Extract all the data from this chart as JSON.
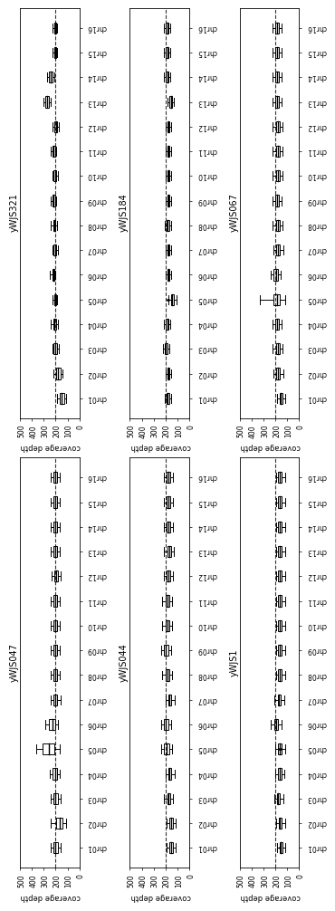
{
  "strain_order": [
    [
      "yWJS047",
      "yWJS321"
    ],
    [
      "yWJS044",
      "yWJS184"
    ],
    [
      "yWJS1",
      "yWJS067"
    ]
  ],
  "chromosomes": [
    "chr01",
    "chr02",
    "chr03",
    "chr04",
    "chr05",
    "chr06",
    "chr07",
    "chr08",
    "chr09",
    "chr10",
    "chr11",
    "chr12",
    "chr13",
    "chr14",
    "chr15",
    "chr16"
  ],
  "xlabel": "coverage depth",
  "dashed_line": 200,
  "xlim": [
    0,
    500
  ],
  "xticks": [
    0,
    100,
    200,
    300,
    400,
    500
  ],
  "strain_data": {
    "yWJS321": {
      "medians": [
        150,
        180,
        200,
        210,
        200,
        220,
        205,
        210,
        215,
        205,
        215,
        195,
        270,
        240,
        200,
        200
      ],
      "q1": [
        130,
        160,
        185,
        195,
        195,
        210,
        195,
        200,
        205,
        195,
        205,
        185,
        255,
        225,
        195,
        195
      ],
      "q3": [
        165,
        195,
        215,
        220,
        210,
        230,
        215,
        220,
        225,
        215,
        225,
        210,
        285,
        255,
        210,
        210
      ],
      "whislo": [
        110,
        140,
        170,
        180,
        185,
        200,
        180,
        190,
        195,
        180,
        195,
        175,
        240,
        210,
        185,
        185
      ],
      "whishi": [
        185,
        215,
        230,
        240,
        225,
        250,
        230,
        240,
        240,
        230,
        240,
        225,
        305,
        270,
        225,
        225
      ],
      "fliers": [
        [],
        [],
        [],
        [],
        [],
        [],
        [],
        [],
        [],
        [],
        [],
        [],
        [],
        [],
        [],
        []
      ]
    },
    "yWJS047": {
      "medians": [
        200,
        165,
        200,
        205,
        260,
        230,
        205,
        200,
        200,
        200,
        200,
        195,
        200,
        200,
        200,
        200
      ],
      "q1": [
        180,
        140,
        180,
        185,
        210,
        205,
        185,
        185,
        185,
        185,
        185,
        180,
        185,
        185,
        185,
        185
      ],
      "q3": [
        220,
        195,
        220,
        225,
        310,
        255,
        220,
        215,
        215,
        215,
        215,
        210,
        215,
        215,
        215,
        215
      ],
      "whislo": [
        155,
        110,
        155,
        165,
        165,
        180,
        160,
        165,
        165,
        165,
        165,
        160,
        165,
        165,
        165,
        165
      ],
      "whishi": [
        245,
        240,
        245,
        250,
        365,
        285,
        245,
        240,
        240,
        240,
        240,
        235,
        240,
        240,
        240,
        240
      ],
      "fliers": [
        [],
        [],
        [],
        [],
        [],
        [],
        [],
        [],
        [],
        [],
        [],
        [],
        [],
        [],
        [],
        []
      ]
    },
    "yWJS184": {
      "medians": [
        180,
        175,
        195,
        185,
        145,
        175,
        175,
        180,
        175,
        175,
        175,
        175,
        155,
        185,
        185,
        185
      ],
      "q1": [
        170,
        165,
        185,
        175,
        130,
        165,
        165,
        170,
        165,
        165,
        165,
        165,
        145,
        175,
        175,
        175
      ],
      "q3": [
        190,
        185,
        205,
        195,
        155,
        185,
        185,
        190,
        185,
        185,
        185,
        185,
        165,
        195,
        195,
        195
      ],
      "whislo": [
        155,
        150,
        170,
        160,
        110,
        150,
        150,
        155,
        150,
        150,
        150,
        150,
        130,
        160,
        160,
        160
      ],
      "whishi": [
        205,
        200,
        220,
        210,
        175,
        200,
        200,
        205,
        200,
        200,
        200,
        200,
        180,
        210,
        210,
        210
      ],
      "fliers": [
        [],
        [],
        [],
        [],
        [
          175,
          185
        ],
        [],
        [],
        [],
        [],
        [],
        [],
        [],
        [],
        [],
        [],
        []
      ]
    },
    "yWJS044": {
      "medians": [
        155,
        155,
        175,
        165,
        190,
        195,
        165,
        185,
        195,
        185,
        185,
        175,
        170,
        175,
        175,
        175
      ],
      "q1": [
        140,
        140,
        160,
        150,
        170,
        175,
        150,
        170,
        175,
        170,
        170,
        160,
        155,
        160,
        160,
        160
      ],
      "q3": [
        165,
        165,
        185,
        175,
        210,
        215,
        175,
        200,
        215,
        200,
        200,
        190,
        185,
        190,
        190,
        190
      ],
      "whislo": [
        115,
        115,
        135,
        125,
        145,
        150,
        125,
        145,
        150,
        145,
        145,
        135,
        130,
        135,
        135,
        135
      ],
      "whishi": [
        190,
        190,
        210,
        200,
        235,
        240,
        200,
        225,
        240,
        225,
        225,
        215,
        210,
        215,
        215,
        215
      ],
      "fliers": [
        [],
        [],
        [],
        [],
        [],
        [],
        [],
        [],
        [],
        [],
        [],
        [],
        [],
        [],
        [],
        []
      ]
    },
    "yWJS067": {
      "medians": [
        155,
        175,
        180,
        185,
        185,
        195,
        175,
        180,
        185,
        180,
        180,
        180,
        185,
        185,
        185,
        185
      ],
      "q1": [
        140,
        160,
        165,
        170,
        165,
        180,
        160,
        165,
        170,
        165,
        165,
        165,
        170,
        170,
        170,
        170
      ],
      "q3": [
        165,
        190,
        195,
        200,
        215,
        215,
        190,
        195,
        200,
        195,
        195,
        195,
        200,
        200,
        200,
        200
      ],
      "whislo": [
        115,
        135,
        140,
        145,
        120,
        155,
        135,
        140,
        145,
        140,
        140,
        140,
        145,
        145,
        145,
        145
      ],
      "whishi": [
        185,
        215,
        220,
        225,
        330,
        240,
        215,
        220,
        225,
        220,
        220,
        220,
        225,
        225,
        225,
        225
      ],
      "fliers": [
        [],
        [],
        [],
        [],
        [],
        [],
        [],
        [],
        [],
        [],
        [],
        [],
        [],
        [],
        [],
        []
      ]
    },
    "yWJS1": {
      "medians": [
        155,
        160,
        175,
        165,
        165,
        195,
        170,
        165,
        165,
        165,
        165,
        165,
        165,
        165,
        165,
        165
      ],
      "q1": [
        140,
        145,
        160,
        150,
        150,
        175,
        155,
        150,
        150,
        150,
        150,
        150,
        150,
        150,
        150,
        150
      ],
      "q3": [
        165,
        170,
        185,
        175,
        175,
        210,
        180,
        175,
        175,
        175,
        175,
        175,
        175,
        175,
        175,
        175
      ],
      "whislo": [
        115,
        120,
        135,
        125,
        120,
        150,
        125,
        120,
        120,
        120,
        120,
        120,
        120,
        120,
        120,
        120
      ],
      "whishi": [
        185,
        195,
        210,
        200,
        200,
        240,
        205,
        195,
        195,
        195,
        195,
        195,
        195,
        195,
        195,
        195
      ],
      "fliers": [
        [
          165
        ],
        [],
        [],
        [],
        [
          160,
          160,
          160
        ],
        [],
        [],
        [],
        [],
        [],
        [],
        [],
        [],
        [],
        [],
        []
      ]
    }
  }
}
